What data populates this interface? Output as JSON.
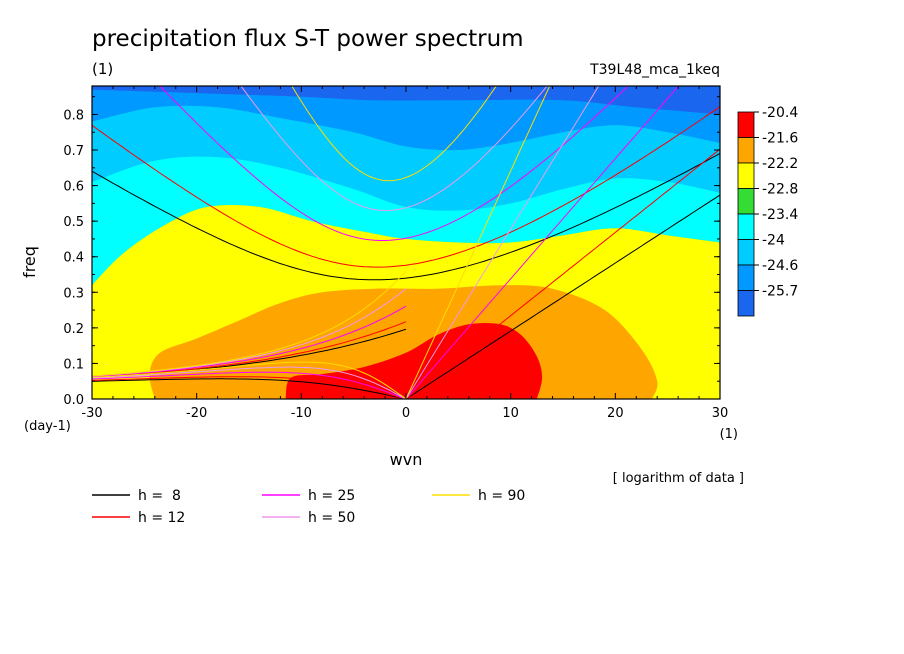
{
  "header": {
    "title": "precipitation flux S-T power spectrum",
    "units_label": "(1)",
    "run_label": "T39L48_mca_1keq",
    "note": "[ logarithm of data ]"
  },
  "colorbar": {
    "labels": [
      "-20.4",
      "-21.6",
      "-22.2",
      "-22.8",
      "-23.4",
      "-24",
      "-24.6",
      "-25.7"
    ],
    "colors": [
      "#ff0000",
      "#ffa500",
      "#ffff00",
      "#33dd33",
      "#00ffff",
      "#00ccff",
      "#0099ff",
      "#1a66ee"
    ]
  },
  "chart_data": {
    "type": "contour",
    "title": "precipitation flux S-T power spectrum",
    "xlabel": "wvn",
    "ylabel": "freq",
    "x_unit": "(1)",
    "y_unit": "(day-1)",
    "xlim": [
      -30,
      30
    ],
    "ylim": [
      0,
      0.88
    ],
    "x_ticks": [
      -30,
      -20,
      -10,
      0,
      10,
      20,
      30
    ],
    "x_tick_labels": [
      "-30",
      "-20",
      "-10",
      "0",
      "10",
      "20",
      "30"
    ],
    "y_ticks": [
      0,
      0.1,
      0.2,
      0.3,
      0.4,
      0.5,
      0.6,
      0.7,
      0.8
    ],
    "y_tick_labels": [
      "0.0",
      "0.1",
      "0.2",
      "0.3",
      "0.4",
      "0.5",
      "0.6",
      "0.7",
      "0.8"
    ],
    "fill_levels": [
      {
        "color": "#0099ff",
        "boundary": [
          [
            -30,
            0.87
          ],
          [
            -20,
            0.86
          ],
          [
            -10,
            0.85
          ],
          [
            -3,
            0.84
          ],
          [
            5,
            0.84
          ],
          [
            15,
            0.84
          ],
          [
            22,
            0.82
          ],
          [
            30,
            0.8
          ]
        ]
      },
      {
        "color": "#00ccff",
        "boundary": [
          [
            -30,
            0.78
          ],
          [
            -24,
            0.82
          ],
          [
            -18,
            0.82
          ],
          [
            -12,
            0.79
          ],
          [
            -5,
            0.75
          ],
          [
            0,
            0.71
          ],
          [
            5,
            0.7
          ],
          [
            10,
            0.72
          ],
          [
            15,
            0.75
          ],
          [
            20,
            0.77
          ],
          [
            25,
            0.75
          ],
          [
            30,
            0.72
          ]
        ]
      },
      {
        "color": "#00ffff",
        "boundary": [
          [
            -30,
            0.61
          ],
          [
            -24,
            0.67
          ],
          [
            -18,
            0.68
          ],
          [
            -12,
            0.65
          ],
          [
            -5,
            0.59
          ],
          [
            0,
            0.54
          ],
          [
            5,
            0.53
          ],
          [
            10,
            0.55
          ],
          [
            15,
            0.59
          ],
          [
            20,
            0.62
          ],
          [
            25,
            0.61
          ],
          [
            30,
            0.58
          ]
        ]
      },
      {
        "color": "#33dd33",
        "boundary": [
          [
            -30,
            0.32
          ],
          [
            -27,
            0.41
          ],
          [
            -23,
            0.49
          ],
          [
            -19,
            0.54
          ],
          [
            -14,
            0.54
          ],
          [
            -9,
            0.5
          ],
          [
            -4,
            0.47
          ],
          [
            0,
            0.45
          ],
          [
            5,
            0.44
          ],
          [
            10,
            0.44
          ],
          [
            15,
            0.46
          ],
          [
            20,
            0.48
          ],
          [
            25,
            0.46
          ],
          [
            30,
            0.44
          ]
        ]
      },
      {
        "color": "#ffff00",
        "boundary": [
          [
            -30,
            0.0
          ],
          [
            -30,
            0.32
          ],
          [
            -27,
            0.41
          ],
          [
            -23,
            0.49
          ],
          [
            -19,
            0.54
          ],
          [
            -14,
            0.54
          ],
          [
            -9,
            0.5
          ],
          [
            -4,
            0.47
          ],
          [
            0,
            0.45
          ],
          [
            5,
            0.44
          ],
          [
            10,
            0.44
          ],
          [
            15,
            0.46
          ],
          [
            20,
            0.48
          ],
          [
            25,
            0.46
          ],
          [
            30,
            0.44
          ],
          [
            30,
            0.0
          ]
        ]
      },
      {
        "color": "#ffa500",
        "polygon": [
          [
            -24,
            0.0
          ],
          [
            -24.5,
            0.07
          ],
          [
            -23.5,
            0.13
          ],
          [
            -20,
            0.17
          ],
          [
            -16,
            0.22
          ],
          [
            -12,
            0.27
          ],
          [
            -8,
            0.3
          ],
          [
            -3,
            0.31
          ],
          [
            3,
            0.31
          ],
          [
            9,
            0.32
          ],
          [
            14,
            0.31
          ],
          [
            19,
            0.25
          ],
          [
            22.5,
            0.14
          ],
          [
            24,
            0.05
          ],
          [
            23.5,
            0.0
          ]
        ]
      },
      {
        "color": "#ff0000",
        "polygon": [
          [
            -11.5,
            0.0
          ],
          [
            -11,
            0.06
          ],
          [
            -8,
            0.07
          ],
          [
            -4,
            0.09
          ],
          [
            0,
            0.13
          ],
          [
            3,
            0.18
          ],
          [
            6,
            0.21
          ],
          [
            9,
            0.21
          ],
          [
            11,
            0.18
          ],
          [
            12.5,
            0.12
          ],
          [
            13,
            0.06
          ],
          [
            12.5,
            0.0
          ]
        ]
      }
    ],
    "dispersion_legend": [
      {
        "label": "h =  8",
        "color": "#000000"
      },
      {
        "label": "h = 12",
        "color": "#ff0000"
      },
      {
        "label": "h = 25",
        "color": "#ff00ff"
      },
      {
        "label": "h = 50",
        "color": "#ee99ee"
      },
      {
        "label": "h = 90",
        "color": "#ffdd00"
      }
    ],
    "legend_position": "bottom",
    "dispersion_curves": {
      "h8": {
        "er": [
          [
            -30,
            0.056
          ],
          [
            -20,
            0.057
          ],
          [
            -10,
            0.055
          ],
          [
            -6,
            0.048
          ],
          [
            -3,
            0.03
          ],
          [
            0,
            0.0
          ]
        ],
        "mrg": [
          [
            -30,
            0.64
          ],
          [
            -20,
            0.53
          ],
          [
            -10,
            0.42
          ],
          [
            -5,
            0.37
          ],
          [
            0,
            0.34
          ],
          [
            5,
            0.35
          ],
          [
            10,
            0.39
          ],
          [
            20,
            0.51
          ],
          [
            30,
            0.64
          ]
        ],
        "ig": [
          [
            -30,
            0.65
          ],
          [
            -20,
            0.55
          ],
          [
            -10,
            0.44
          ],
          [
            -5,
            0.39
          ],
          [
            0,
            0.34
          ],
          [
            5,
            0.36
          ],
          [
            10,
            0.41
          ],
          [
            20,
            0.53
          ],
          [
            30,
            0.69
          ]
        ],
        "kelvin": [
          [
            0,
            0.0
          ],
          [
            10,
            0.19
          ],
          [
            20,
            0.38
          ],
          [
            30,
            0.57
          ]
        ]
      }
    }
  }
}
